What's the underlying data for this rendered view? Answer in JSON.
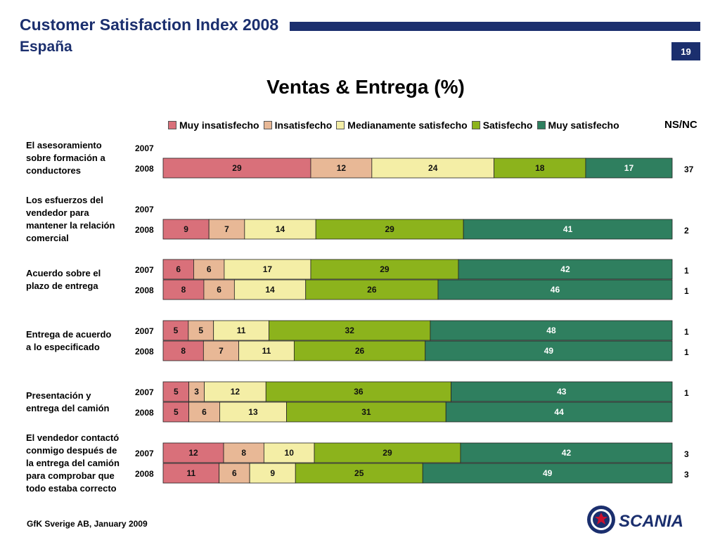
{
  "header": {
    "title": "Customer Satisfaction Index 2008",
    "subtitle": "España",
    "page_number": "19",
    "brand_color": "#1b2f6e"
  },
  "footer": {
    "source": "GfK Sverige AB, January 2009"
  },
  "logo": {
    "name": "scania-logo",
    "text": "SCANIA"
  },
  "chart_data": {
    "type": "bar",
    "orientation": "horizontal",
    "stacked": true,
    "title": "Ventas & Entrega (%)",
    "xlabel": "",
    "ylabel": "",
    "xlim": [
      0,
      100
    ],
    "grid": false,
    "legend_position": "top",
    "series": [
      {
        "name": "Muy insatisfecho",
        "color": "#d9707a"
      },
      {
        "name": "Insatisfecho",
        "color": "#e8b896"
      },
      {
        "name": "Medianamente satisfecho",
        "color": "#f4eea6"
      },
      {
        "name": "Satisfecho",
        "color": "#8cb31c"
      },
      {
        "name": "Muy satisfecho",
        "color": "#2f7f5f"
      }
    ],
    "extra_column_label": "NS/NC",
    "categories": [
      {
        "label": "El asesoramiento sobre formación a conductores",
        "label_lines": [
          "El asesoramiento",
          "sobre formación a",
          "conductores"
        ],
        "rows": [
          {
            "year": "2007",
            "values": null,
            "nsnc": ""
          },
          {
            "year": "2008",
            "values": [
              29,
              12,
              24,
              18,
              17
            ],
            "nsnc": "37"
          }
        ]
      },
      {
        "label": "Los esfuerzos del vendedor para mantener la relación comercial",
        "label_lines": [
          "Los esfuerzos del",
          "vendedor para",
          "mantener la relación",
          "comercial"
        ],
        "rows": [
          {
            "year": "2007",
            "values": null,
            "nsnc": ""
          },
          {
            "year": "2008",
            "values": [
              9,
              7,
              14,
              29,
              41
            ],
            "nsnc": "2"
          }
        ]
      },
      {
        "label": "Acuerdo sobre el plazo de entrega",
        "label_lines": [
          "Acuerdo sobre el",
          "plazo de entrega"
        ],
        "rows": [
          {
            "year": "2007",
            "values": [
              6,
              6,
              17,
              29,
              42
            ],
            "nsnc": "1"
          },
          {
            "year": "2008",
            "values": [
              8,
              6,
              14,
              26,
              46
            ],
            "nsnc": "1"
          }
        ]
      },
      {
        "label": "Entrega de acuerdo a lo especificado",
        "label_lines": [
          "Entrega de acuerdo",
          "a lo especificado"
        ],
        "rows": [
          {
            "year": "2007",
            "values": [
              5,
              5,
              11,
              32,
              48
            ],
            "nsnc": "1"
          },
          {
            "year": "2008",
            "values": [
              8,
              7,
              11,
              26,
              49
            ],
            "nsnc": "1"
          }
        ]
      },
      {
        "label": "Presentación y entrega del camión",
        "label_lines": [
          "Presentación y",
          "entrega del camión"
        ],
        "rows": [
          {
            "year": "2007",
            "values": [
              5,
              3,
              12,
              36,
              43
            ],
            "nsnc": "1"
          },
          {
            "year": "2008",
            "values": [
              5,
              6,
              13,
              31,
              44
            ],
            "nsnc": ""
          }
        ]
      },
      {
        "label": "El vendedor contactó conmigo después de la entrega del camión para comprobar que todo estaba correcto",
        "label_lines": [
          "El vendedor contactó",
          "conmigo después de",
          "la entrega del camión",
          "para comprobar que",
          "todo estaba correcto"
        ],
        "rows": [
          {
            "year": "2007",
            "values": [
              12,
              8,
              10,
              29,
              42
            ],
            "nsnc": "3"
          },
          {
            "year": "2008",
            "values": [
              11,
              6,
              9,
              25,
              49
            ],
            "nsnc": "3"
          }
        ]
      }
    ]
  }
}
